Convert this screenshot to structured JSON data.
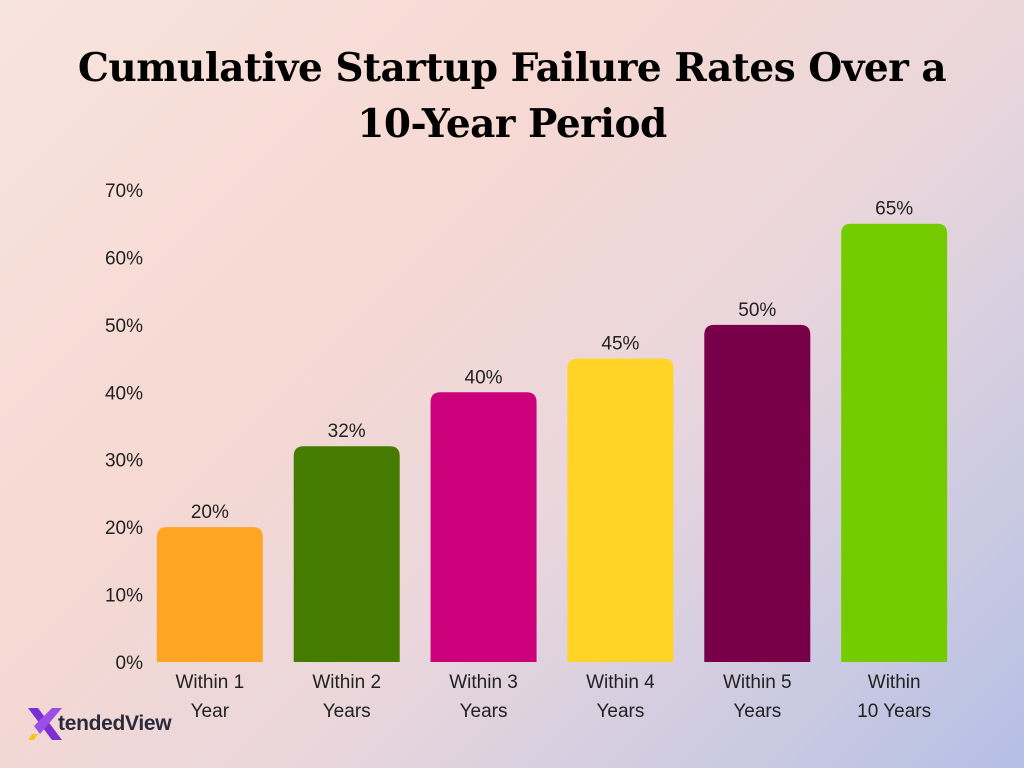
{
  "chart_data": {
    "type": "bar",
    "title": "Cumulative Startup Failure Rates Over a 10-Year Period",
    "categories": [
      [
        "Within 1",
        "Year"
      ],
      [
        "Within 2",
        "Years"
      ],
      [
        "Within 3",
        "Years"
      ],
      [
        "Within 4",
        "Years"
      ],
      [
        "Within 5",
        "Years"
      ],
      [
        "Within",
        "10 Years"
      ]
    ],
    "values": [
      20,
      32,
      40,
      45,
      50,
      65
    ],
    "value_labels": [
      "20%",
      "32%",
      "40%",
      "45%",
      "50%",
      "65%"
    ],
    "colors": [
      "#ffa423",
      "#457c00",
      "#cc007a",
      "#ffd426",
      "#780049",
      "#74cc00"
    ],
    "ylim": [
      0,
      70
    ],
    "yticks": [
      "0%",
      "10%",
      "20%",
      "30%",
      "40%",
      "50%",
      "60%",
      "70%"
    ],
    "grid": false,
    "xlabel": "",
    "ylabel": ""
  },
  "logo": {
    "mark": "X",
    "text_part1": "tended",
    "text_part2": "View",
    "colors": {
      "purple": "#7b2fd0",
      "yellow": "#f5c518"
    }
  }
}
